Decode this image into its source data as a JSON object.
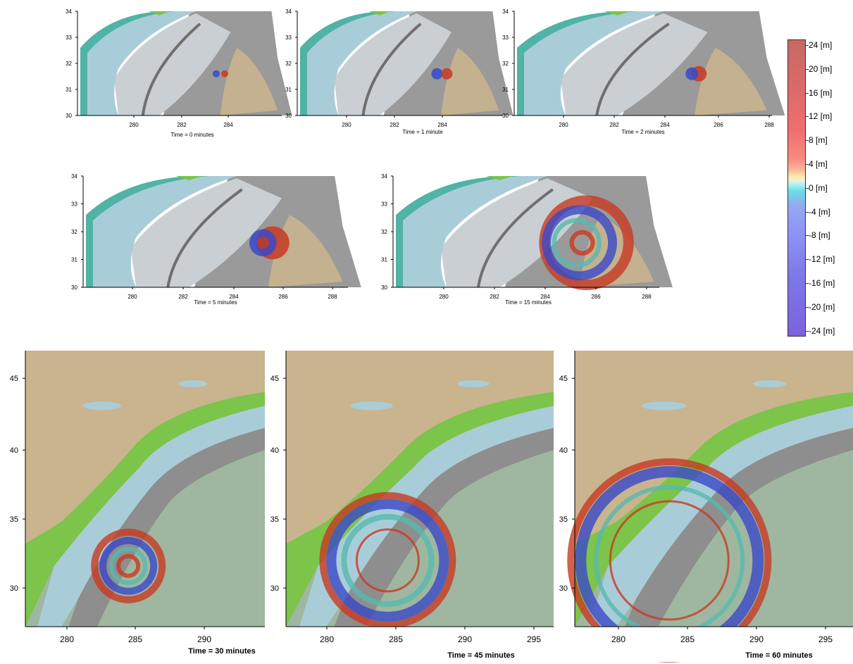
{
  "small_panels": [
    {
      "caption": "Time = 0 minutes",
      "x_ticks": [
        "280",
        "282",
        "284"
      ],
      "y_ticks": [
        "34",
        "33",
        "32",
        "31",
        "30"
      ],
      "wave": "t0"
    },
    {
      "caption": "Time = 1 minute",
      "x_ticks": [
        "280",
        "282",
        "284"
      ],
      "y_ticks": [
        "34",
        "33",
        "32",
        "31",
        "30"
      ],
      "wave": "t1"
    },
    {
      "caption": "Time = 2 minutes",
      "x_ticks": [
        "280",
        "282",
        "284",
        "286",
        "288"
      ],
      "y_ticks": [
        "34",
        "33",
        "32",
        "31",
        "30"
      ],
      "wave": "t2"
    },
    {
      "caption": "Time = 5 minutes",
      "x_ticks": [
        "280",
        "282",
        "284",
        "286",
        "288"
      ],
      "y_ticks": [
        "34",
        "33",
        "32",
        "31",
        "30"
      ],
      "wave": "t5"
    },
    {
      "caption": "Time = 15 minutes",
      "x_ticks": [
        "280",
        "282",
        "284",
        "286",
        "288"
      ],
      "y_ticks": [
        "34",
        "33",
        "32",
        "31",
        "30"
      ],
      "wave": "t15"
    }
  ],
  "large_panels": [
    {
      "caption": "Time = 30 minutes",
      "x_ticks": [
        "280",
        "285",
        "290"
      ],
      "y_ticks": [
        "45",
        "40",
        "35",
        "30"
      ],
      "wave": "t30"
    },
    {
      "caption": "Time = 45 minutes",
      "x_ticks": [
        "280",
        "285",
        "290",
        "295"
      ],
      "y_ticks": [
        "45",
        "40",
        "35",
        "30"
      ],
      "wave": "t45"
    },
    {
      "caption": "Time = 60 minutes",
      "x_ticks": [
        "280",
        "285",
        "290",
        "295"
      ],
      "y_ticks": [
        "45",
        "40",
        "35",
        "30"
      ],
      "wave": "t60"
    }
  ],
  "colorbar": {
    "labels": [
      "24 [m]",
      "20 [m]",
      "16 [m]",
      "12 [m]",
      "8 [m]",
      "4 [m]",
      "0 [m]",
      "-4 [m]",
      "-8 [m]",
      "-12 [m]",
      "-16 [m]",
      "-20 [m]",
      "-24 [m]"
    ]
  },
  "colors": {
    "ocean": "#a9cdd8",
    "shelf": "#8ec8cc",
    "coast_green": "#7cc44a",
    "land_tan": "#c9b48e",
    "terrain_gray": "#8e8e8e",
    "crest": "#c83a22",
    "trough": "#3a49c8"
  }
}
